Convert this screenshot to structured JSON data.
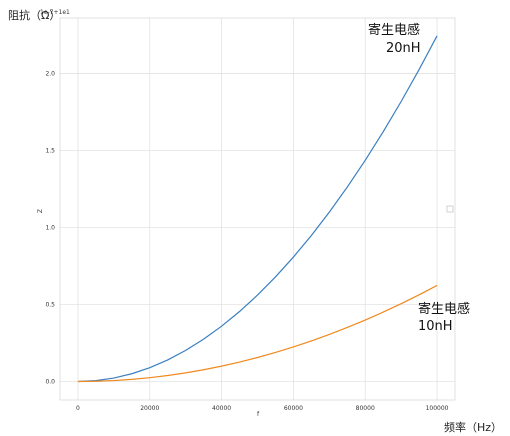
{
  "chart_data": {
    "type": "line",
    "x": [
      0,
      5000,
      10000,
      15000,
      20000,
      25000,
      30000,
      35000,
      40000,
      45000,
      50000,
      55000,
      60000,
      65000,
      70000,
      75000,
      80000,
      85000,
      90000,
      95000,
      100000
    ],
    "series": [
      {
        "values": [
          0,
          0.00561,
          0.02244,
          0.0505,
          0.08977,
          0.14026,
          0.20198,
          0.27492,
          0.35908,
          0.45446,
          0.56106,
          0.67888,
          0.80792,
          0.94818,
          1.09967,
          1.26238,
          1.43631,
          1.62146,
          1.81783,
          2.02543,
          2.24425
        ],
        "color": "#3a7fc1"
      },
      {
        "values": [
          0,
          0.00156,
          0.00624,
          0.01404,
          0.02495,
          0.03899,
          0.05614,
          0.07642,
          0.09981,
          0.12632,
          0.15595,
          0.1887,
          0.22457,
          0.26356,
          0.30566,
          0.35089,
          0.39924,
          0.4507,
          0.50528,
          0.56299,
          0.62381
        ],
        "color": "#f0891e"
      }
    ],
    "xlabel": "f",
    "ylabel": "Z",
    "xlim": [
      -5000,
      105000
    ],
    "ylim": [
      -0.12,
      2.36
    ],
    "xticks": [
      0,
      20000,
      40000,
      60000,
      80000,
      100000
    ],
    "xtick_labels": [
      "0",
      "20000",
      "40000",
      "60000",
      "80000",
      "100000"
    ],
    "yticks": [
      0.0,
      0.5,
      1.0,
      1.5,
      2.0
    ],
    "ytick_labels": [
      "0.0",
      "0.5",
      "1.0",
      "1.5",
      "2.0"
    ],
    "offset_text": "1e-7+1e1",
    "grid": true,
    "annotations": [
      {
        "line1": "寄生电感",
        "line2": "20nH"
      },
      {
        "line1": "寄生电感",
        "line2": "10nH"
      }
    ],
    "outer_y_label": "阻抗（Ω）",
    "outer_x_label": "频率（Hz）"
  }
}
